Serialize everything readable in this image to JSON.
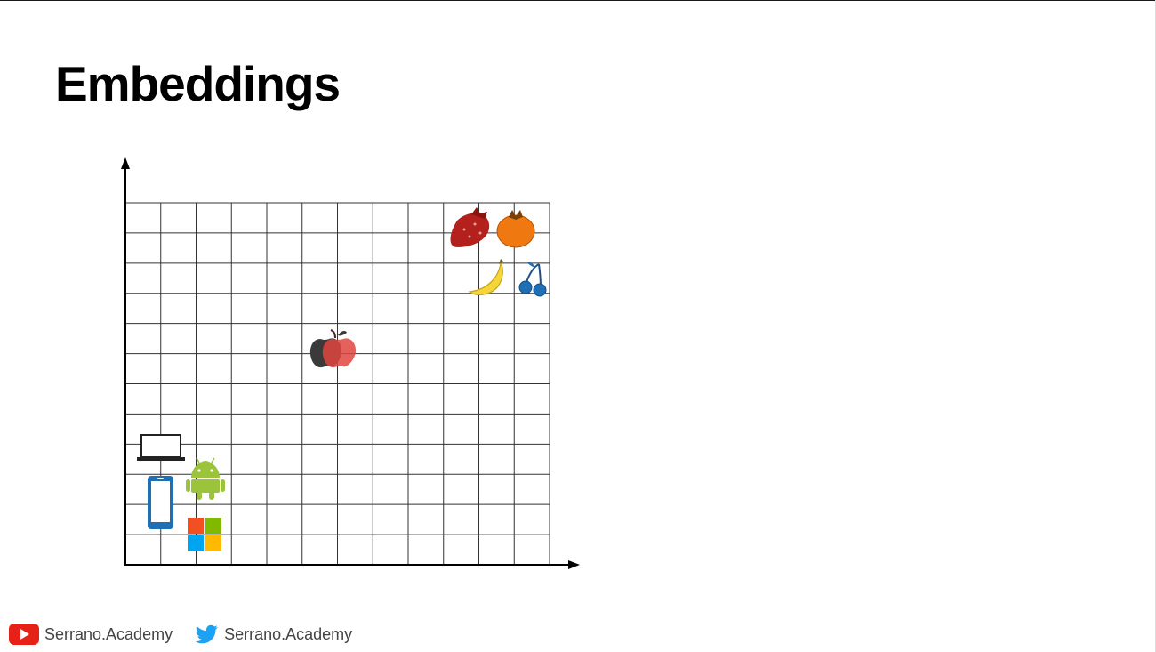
{
  "slide": {
    "title": "Embeddings"
  },
  "diagram": {
    "grid_columns": 12,
    "grid_rows": 12,
    "items": [
      {
        "name": "strawberry-icon",
        "group": "fruit",
        "color": "#b4201c"
      },
      {
        "name": "orange-icon",
        "group": "fruit",
        "color": "#f07810"
      },
      {
        "name": "banana-icon",
        "group": "fruit",
        "color": "#f5d63a"
      },
      {
        "name": "cherry-icon",
        "group": "fruit",
        "color": "#1f6fb5"
      },
      {
        "name": "apple-company-icon",
        "group": "ambiguous",
        "color": "#3a3a3a"
      },
      {
        "name": "apple-fruit-icon",
        "group": "ambiguous",
        "color": "#e0453f"
      },
      {
        "name": "laptop-icon",
        "group": "technology",
        "color": "#222222"
      },
      {
        "name": "android-icon",
        "group": "technology",
        "color": "#9bc33c"
      },
      {
        "name": "smartphone-icon",
        "group": "technology",
        "color": "#1f6fb5"
      },
      {
        "name": "windows-logo-icon",
        "group": "technology",
        "color": "#f25022"
      }
    ]
  },
  "footer": {
    "youtube": {
      "icon": "youtube-icon",
      "label": "Serrano.Academy",
      "color": "#e62117"
    },
    "twitter": {
      "icon": "twitter-icon",
      "label": "Serrano.Academy",
      "color": "#1da1f2"
    }
  }
}
